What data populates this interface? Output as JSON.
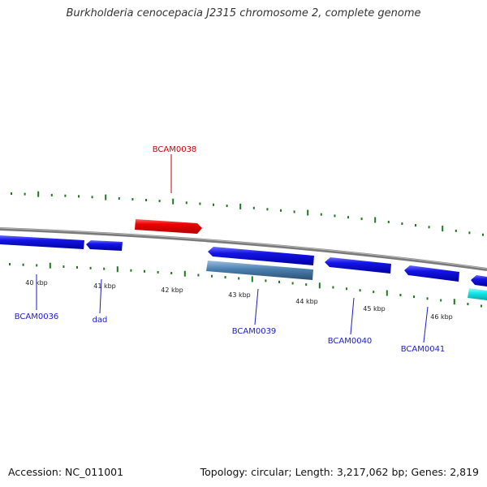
{
  "title": "Burkholderia cenocepacia J2315 chromosome 2, complete genome",
  "footer": {
    "accession": "Accession: NC_011001",
    "summary": "Topology: circular; Length: 3,217,062 bp; Genes: 2,819"
  },
  "colors": {
    "backbone": "#7a7a7a",
    "tick": "#1e7a1e",
    "gene_forward": "#e60000",
    "gene_reverse": "#1414e6",
    "gene_steel": "#4a7fb0",
    "gene_cyan": "#12e8ea",
    "label_forward": "#cc0000",
    "label_reverse": "#1a1acc"
  },
  "scale_labels": [
    "40 kbp",
    "41 kbp",
    "42 kbp",
    "43 kbp",
    "44 kbp",
    "45 kbp",
    "46 kbp"
  ],
  "gene_labels": [
    {
      "name": "BCAM0038",
      "strand": "forward"
    },
    {
      "name": "BCAM0036",
      "strand": "reverse"
    },
    {
      "name": "dad",
      "strand": "reverse"
    },
    {
      "name": "BCAM0039",
      "strand": "reverse"
    },
    {
      "name": "BCAM0040",
      "strand": "reverse"
    },
    {
      "name": "BCAM0041",
      "strand": "reverse"
    }
  ]
}
